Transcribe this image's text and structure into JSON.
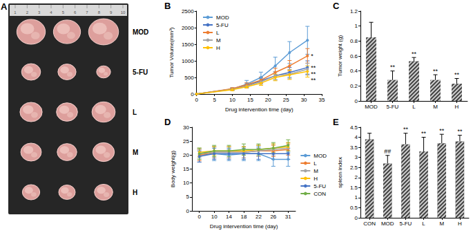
{
  "photo": {
    "panel": "A",
    "ruler": [
      "1",
      "2",
      "3",
      "4",
      "5",
      "6",
      "7",
      "8",
      "9",
      "10"
    ],
    "rows": [
      "MOD",
      "5-FU",
      "L",
      "M",
      "H"
    ]
  },
  "chart_data": [
    {
      "panel": "B",
      "type": "line",
      "x_label": "Drug intervention time (day)",
      "y_label": "Tumor Volume(mm³)",
      "x": [
        0,
        10,
        14,
        18,
        22,
        26,
        31
      ],
      "xlim": [
        0,
        35
      ],
      "xticks": [
        0,
        5,
        10,
        15,
        20,
        25,
        30,
        35
      ],
      "ylim": [
        0,
        2500
      ],
      "yticks": [
        0,
        500,
        1000,
        1500,
        2000,
        2500
      ],
      "grid": false,
      "legend": "upper left",
      "marker": "circle",
      "line_style": "solid",
      "series": [
        {
          "name": "MOD",
          "color": "#5b9bd5",
          "values": [
            0,
            150,
            300,
            500,
            850,
            1250,
            1620
          ],
          "errors": [
            0,
            40,
            110,
            160,
            260,
            330,
            420
          ]
        },
        {
          "name": "5-FU",
          "color": "#4472c4",
          "values": [
            0,
            150,
            250,
            400,
            550,
            650,
            800
          ],
          "errors": [
            0,
            30,
            60,
            80,
            120,
            150,
            200
          ],
          "significance": "**"
        },
        {
          "name": "L",
          "color": "#ed7d31",
          "values": [
            0,
            160,
            280,
            420,
            650,
            850,
            1150
          ],
          "errors": [
            0,
            30,
            60,
            90,
            130,
            160,
            220
          ],
          "significance": "*"
        },
        {
          "name": "M",
          "color": "#a5a5a5",
          "values": [
            0,
            140,
            240,
            370,
            550,
            600,
            750
          ],
          "errors": [
            0,
            30,
            50,
            80,
            120,
            140,
            180
          ],
          "significance": "**"
        },
        {
          "name": "H",
          "color": "#ffc000",
          "values": [
            0,
            130,
            220,
            330,
            500,
            580,
            680
          ],
          "errors": [
            0,
            30,
            40,
            70,
            100,
            140,
            170
          ],
          "significance": "**"
        }
      ]
    },
    {
      "panel": "C",
      "type": "bar",
      "y_label": "Tumor weight (g)",
      "categories": [
        "MOD",
        "5-FU",
        "L",
        "M",
        "H"
      ],
      "values": [
        0.85,
        0.28,
        0.53,
        0.28,
        0.23
      ],
      "errors": [
        0.2,
        0.12,
        0.05,
        0.07,
        0.07
      ],
      "significance": [
        null,
        "**",
        "**",
        "**",
        "**"
      ],
      "color": "#404040",
      "ylim": [
        0,
        1.2
      ],
      "yticks": [
        0,
        0.2,
        0.4,
        0.6,
        0.8,
        1,
        1.2
      ],
      "grid": false
    },
    {
      "panel": "D",
      "type": "line",
      "x_label": "Drug intervention time (day)",
      "y_label": "Body weight(g)",
      "categories": [
        "0",
        "10",
        "14",
        "18",
        "22",
        "26",
        "31"
      ],
      "ylim": [
        0,
        30
      ],
      "yticks": [
        0,
        5,
        10,
        15,
        20,
        25,
        30
      ],
      "grid": false,
      "legend": "right",
      "marker": "circle",
      "line_style": "solid",
      "series": [
        {
          "name": "MOD",
          "color": "#5b9bd5",
          "values": [
            20,
            20.5,
            20,
            20.5,
            20.5,
            18.5,
            18.5
          ],
          "errors": [
            2.5,
            2.5,
            2,
            2.5,
            2.5,
            2.5,
            2.5
          ]
        },
        {
          "name": "L",
          "color": "#ed7d31",
          "values": [
            20,
            21,
            21,
            21,
            21.5,
            21.5,
            22
          ],
          "errors": [
            2,
            2,
            2,
            2,
            2,
            2,
            2
          ]
        },
        {
          "name": "M",
          "color": "#a5a5a5",
          "values": [
            20.5,
            21,
            21,
            21,
            21.5,
            22,
            22.5
          ],
          "errors": [
            1.5,
            2,
            2,
            2,
            2,
            2,
            2
          ]
        },
        {
          "name": "H",
          "color": "#ffc000",
          "values": [
            21,
            21.5,
            21.5,
            21.5,
            22,
            22.5,
            23
          ],
          "errors": [
            1.5,
            1.5,
            1.5,
            1.5,
            1.5,
            1.5,
            1.5
          ]
        },
        {
          "name": "5-FU",
          "color": "#4472c4",
          "values": [
            19.5,
            20.5,
            20.5,
            20.5,
            20.5,
            20.5,
            20.5
          ],
          "errors": [
            2,
            2,
            2,
            2,
            2,
            2,
            2
          ]
        },
        {
          "name": "CON",
          "color": "#70ad47",
          "values": [
            20.5,
            21.5,
            21.5,
            22,
            22,
            22.5,
            23.5
          ],
          "errors": [
            2,
            2,
            2,
            2,
            2,
            2,
            2
          ]
        }
      ]
    },
    {
      "panel": "E",
      "type": "bar",
      "y_label": "spleen index",
      "categories": [
        "CON",
        "MOD",
        "5-FU",
        "L",
        "M",
        "H"
      ],
      "values": [
        3.9,
        2.7,
        3.65,
        3.3,
        3.7,
        3.8
      ],
      "errors": [
        0.3,
        0.4,
        0.55,
        0.7,
        0.45,
        0.3
      ],
      "significance": [
        null,
        "##",
        "**",
        "**",
        "**",
        "**"
      ],
      "color": "#404040",
      "ylim": [
        0,
        4.5
      ],
      "yticks": [
        0,
        0.5,
        1,
        1.5,
        2,
        2.5,
        3,
        3.5,
        4,
        4.5
      ],
      "grid": false
    }
  ]
}
